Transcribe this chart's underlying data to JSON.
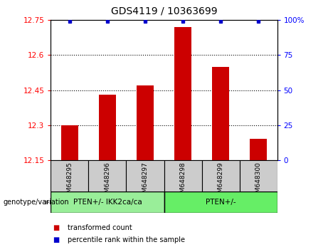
{
  "title": "GDS4119 / 10363699",
  "samples": [
    "GSM648295",
    "GSM648296",
    "GSM648297",
    "GSM648298",
    "GSM648299",
    "GSM648300"
  ],
  "red_values": [
    12.3,
    12.43,
    12.47,
    12.72,
    12.55,
    12.24
  ],
  "ylim_left": [
    12.15,
    12.75
  ],
  "ylim_right": [
    0,
    100
  ],
  "yticks_left": [
    12.15,
    12.3,
    12.45,
    12.6,
    12.75
  ],
  "yticks_right": [
    0,
    25,
    50,
    75,
    100
  ],
  "ytick_labels_left": [
    "12.15",
    "12.3",
    "12.45",
    "12.6",
    "12.75"
  ],
  "ytick_labels_right": [
    "0",
    "25",
    "50",
    "75",
    "100%"
  ],
  "group1_label": "PTEN+/- IKK2ca/ca",
  "group2_label": "PTEN+/-",
  "genotype_label": "genotype/variation",
  "legend_red": "transformed count",
  "legend_blue": "percentile rank within the sample",
  "bar_color": "#cc0000",
  "blue_color": "#0000cc",
  "group1_color": "#99ee99",
  "group2_color": "#66ee66",
  "sample_box_color": "#cccccc",
  "bar_bottom": 12.15,
  "bar_width": 0.45,
  "grid_lines": [
    12.3,
    12.45,
    12.6
  ],
  "blue_percentiles": [
    100,
    100,
    100,
    100,
    100,
    100
  ]
}
